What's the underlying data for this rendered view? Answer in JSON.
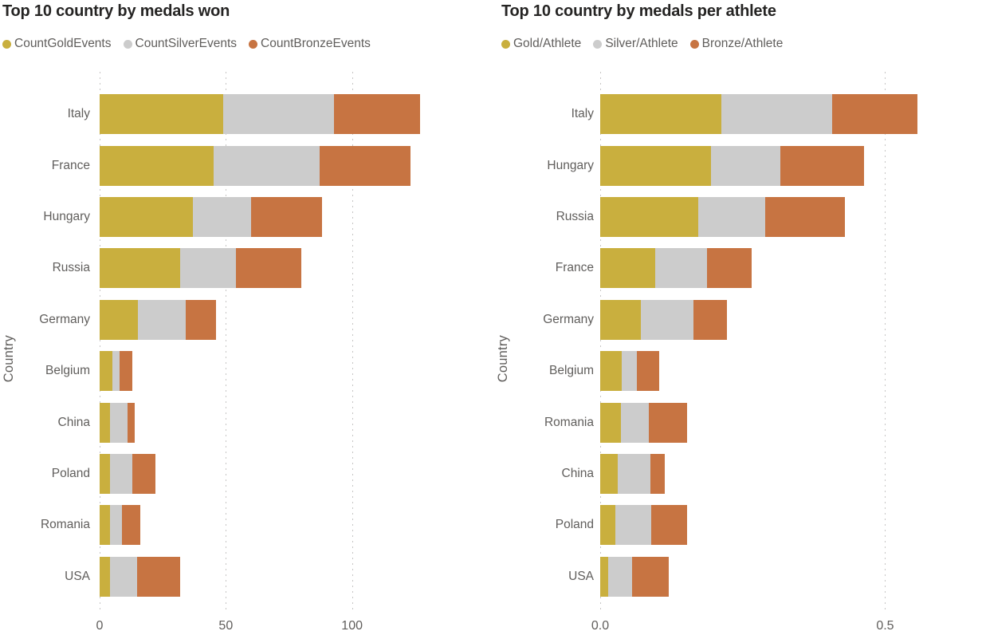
{
  "page": {
    "background": "#ffffff"
  },
  "colors": {
    "gold": "#C9AF3E",
    "silver": "#CCCCCC",
    "bronze": "#C77442",
    "title_text": "#252423",
    "label_text": "#605E5C",
    "gridline": "#C6C5C4"
  },
  "chart_data": [
    {
      "type": "bar",
      "orientation": "horizontal",
      "stacked": true,
      "title": "Top 10 country by medals won",
      "xlabel": "",
      "ylabel": "Country",
      "legend_position": "top",
      "grid": "vertical-dotted",
      "xlim": [
        0,
        150
      ],
      "xticks": [
        0,
        50,
        100
      ],
      "xtick_labels": [
        "0",
        "50",
        "100"
      ],
      "categories": [
        "Italy",
        "France",
        "Hungary",
        "Russia",
        "Germany",
        "Belgium",
        "China",
        "Poland",
        "Romania",
        "USA"
      ],
      "series": [
        {
          "name": "CountGoldEvents",
          "color": "#C9AF3E",
          "values": [
            49,
            45,
            37,
            32,
            15,
            5,
            4,
            4,
            4,
            4
          ]
        },
        {
          "name": "CountSilverEvents",
          "color": "#CCCCCC",
          "values": [
            44,
            42,
            23,
            22,
            19,
            3,
            7,
            9,
            5,
            11
          ]
        },
        {
          "name": "CountBronzeEvents",
          "color": "#C77442",
          "values": [
            34,
            36,
            28,
            26,
            12,
            5,
            3,
            9,
            7,
            17
          ]
        }
      ]
    },
    {
      "type": "bar",
      "orientation": "horizontal",
      "stacked": true,
      "title": "Top 10 country by medals per athlete",
      "xlabel": "",
      "ylabel": "Country",
      "legend_position": "top",
      "grid": "vertical-dotted",
      "xlim": [
        0,
        0.67
      ],
      "xticks": [
        0,
        0.5
      ],
      "xtick_labels": [
        "0.0",
        "0.5"
      ],
      "categories": [
        "Italy",
        "Hungary",
        "Russia",
        "France",
        "Germany",
        "Belgium",
        "Romania",
        "China",
        "Poland",
        "USA"
      ],
      "series": [
        {
          "name": "Gold/Athlete",
          "color": "#C9AF3E",
          "values": [
            0.213,
            0.194,
            0.172,
            0.097,
            0.072,
            0.038,
            0.037,
            0.031,
            0.027,
            0.014
          ]
        },
        {
          "name": "Silver/Athlete",
          "color": "#CCCCCC",
          "values": [
            0.194,
            0.122,
            0.118,
            0.091,
            0.092,
            0.026,
            0.048,
            0.057,
            0.063,
            0.042
          ]
        },
        {
          "name": "Bronze/Athlete",
          "color": "#C77442",
          "values": [
            0.15,
            0.147,
            0.14,
            0.078,
            0.058,
            0.039,
            0.067,
            0.025,
            0.063,
            0.065
          ]
        }
      ]
    }
  ]
}
